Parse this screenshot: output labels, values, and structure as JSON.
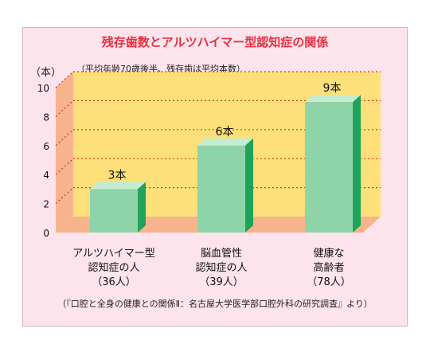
{
  "chart_data": {
    "type": "bar",
    "title": "残存歯数とアルツハイマー型認知症の関係",
    "subtitle": "（平均年齢70歳後半、残存歯は平均本数）",
    "ylabel": "（本）",
    "ylim": [
      0,
      10
    ],
    "yticks": [
      "0",
      "2",
      "4",
      "6",
      "8",
      "10"
    ],
    "categories": [
      [
        "アルツハイマー型",
        "認知症の人",
        "（36人）"
      ],
      [
        "脳血管性",
        "認知症の人",
        "（39人）"
      ],
      [
        "健康な",
        "高齢者",
        "（78人）"
      ]
    ],
    "values": [
      3,
      6,
      9
    ],
    "value_labels": [
      "3本",
      "6本",
      "9本"
    ],
    "grid": "dotted-horizontal",
    "source": "（『口腔と全身の健康との関係Ⅱ：名古屋大学医学部口腔外科の研究調査』より）",
    "colors": {
      "bar_front": "#8fd3a8",
      "bar_side": "#1fa35a",
      "bar_top": "#c3ecd0",
      "wall": "#fde07a",
      "floor": "#f7b38c",
      "grid": "#e0301e",
      "background": "#fde3ec",
      "title": "#e8303f"
    }
  }
}
